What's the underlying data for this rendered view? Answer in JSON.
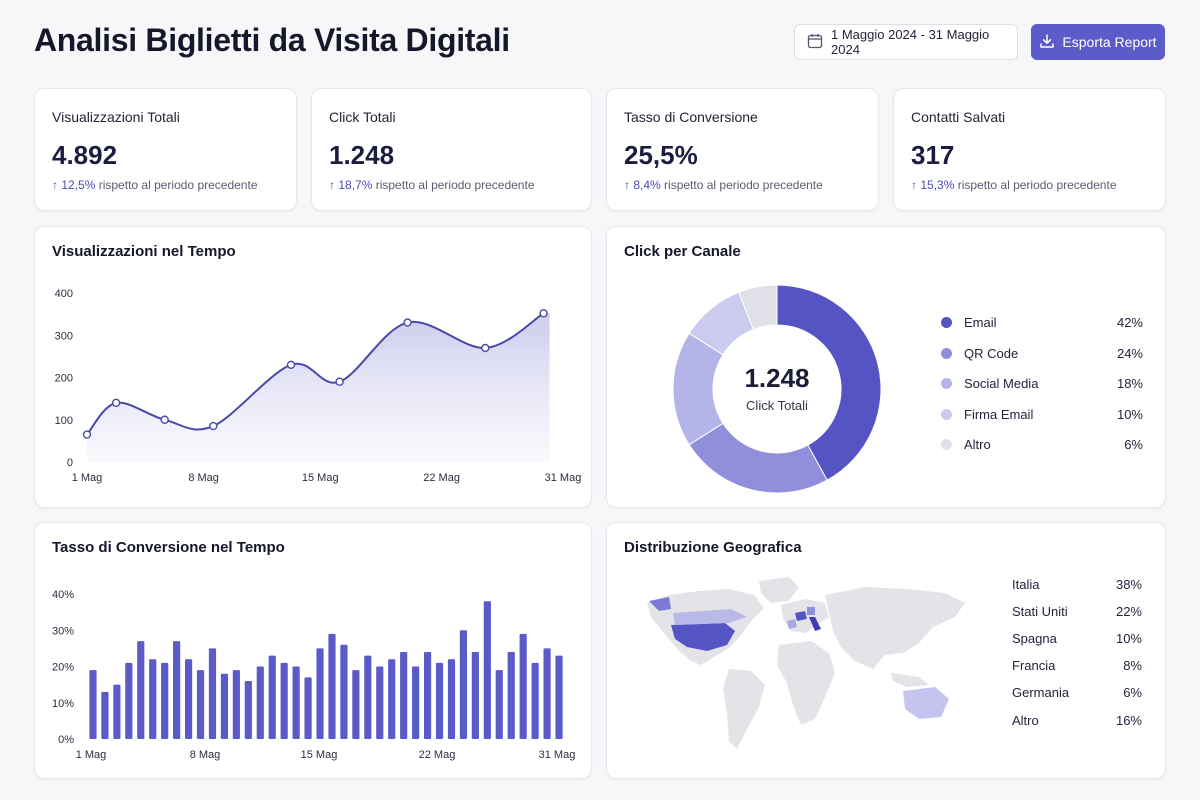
{
  "header": {
    "title": "Analisi Biglietti da Visita Digitali",
    "date_range": "1 Maggio 2024 - 31 Maggio 2024",
    "export_label": "Esporta Report",
    "calendar_icon": "calendar-icon",
    "download_icon": "download-icon"
  },
  "kpis": [
    {
      "label": "Visualizzazioni Totali",
      "value": "4.892",
      "delta": "12,5%",
      "delta_text": "rispetto al periodo precedente"
    },
    {
      "label": "Click Totali",
      "value": "1.248",
      "delta": "18,7%",
      "delta_text": "rispetto al periodo precedente"
    },
    {
      "label": "Tasso di Conversione",
      "value": "25,5%",
      "delta": "8,4%",
      "delta_text": "rispetto al periodo precedente"
    },
    {
      "label": "Contatti Salvati",
      "value": "317",
      "delta": "15,3%",
      "delta_text": "rispetto al periodo precedente"
    }
  ],
  "colors": {
    "accent": "#5b5bc9",
    "line": "#4848a8",
    "bar": "#5a5ac8",
    "map_base": "#e4e4e8"
  },
  "views_chart": {
    "title": "Visualizzazioni nel Tempo",
    "chart_data": {
      "type": "area",
      "x_ticks": [
        "1 Mag",
        "8 Mag",
        "15 Mag",
        "22 Mag",
        "31 Mag"
      ],
      "y_ticks": [
        "0",
        "100",
        "200",
        "300",
        "400"
      ],
      "ylim": [
        0,
        400
      ],
      "x": [
        1,
        4,
        9,
        14,
        22,
        27,
        34,
        42,
        48
      ],
      "xlim": [
        1,
        50
      ],
      "values": [
        65,
        140,
        100,
        85,
        230,
        190,
        330,
        270,
        352
      ]
    }
  },
  "channel_chart": {
    "title": "Click per Canale",
    "center_value": "1.248",
    "center_label": "Click Totali",
    "chart_data": {
      "type": "pie",
      "labels": [
        "Email",
        "QR Code",
        "Social Media",
        "Firma Email",
        "Altro"
      ],
      "values": [
        42,
        24,
        18,
        10,
        6
      ],
      "value_labels": [
        "42%",
        "24%",
        "18%",
        "10%",
        "6%"
      ],
      "colors": [
        "#5454c4",
        "#8f8fdc",
        "#b4b4e8",
        "#cbcbef",
        "#e0e0e8"
      ]
    }
  },
  "conversion_chart": {
    "title": "Tasso di Conversione nel Tempo",
    "chart_data": {
      "type": "bar",
      "x_ticks": [
        "1 Mag",
        "8 Mag",
        "15 Mag",
        "22 Mag",
        "31 Mag"
      ],
      "y_ticks": [
        "0%",
        "10%",
        "20%",
        "30%",
        "40%"
      ],
      "ylim": [
        0,
        40
      ],
      "values": [
        19,
        13,
        15,
        21,
        27,
        22,
        21,
        27,
        22,
        19,
        25,
        18,
        19,
        16,
        20,
        23,
        21,
        20,
        17,
        25,
        29,
        26,
        19,
        23,
        20,
        22,
        24,
        20,
        24,
        21,
        22,
        30,
        24,
        38,
        19,
        24,
        29,
        21,
        25,
        23
      ]
    }
  },
  "geo": {
    "title": "Distribuzione Geografica",
    "rows": [
      {
        "name": "Italia",
        "pct": "38%"
      },
      {
        "name": "Stati Uniti",
        "pct": "22%"
      },
      {
        "name": "Spagna",
        "pct": "10%"
      },
      {
        "name": "Francia",
        "pct": "8%"
      },
      {
        "name": "Germania",
        "pct": "6%"
      },
      {
        "name": "Altro",
        "pct": "16%"
      }
    ]
  }
}
